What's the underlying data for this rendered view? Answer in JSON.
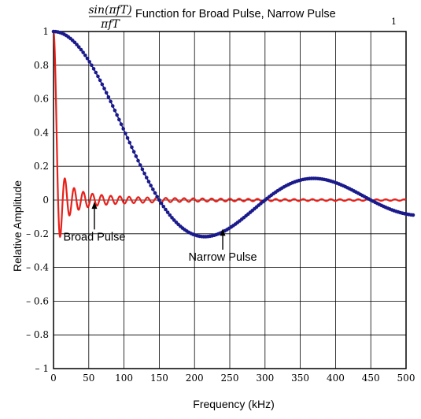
{
  "chart_data": {
    "type": "line",
    "title": {
      "numerator": "sin(πfT)",
      "denominator": "πfT",
      "text": "Function for Broad Pulse, Narrow Pulse"
    },
    "page_number": "1",
    "xlabel": "Frequency (kHz)",
    "ylabel": "Relative Amplitude",
    "xlim": [
      0,
      500
    ],
    "ylim": [
      -1,
      1
    ],
    "x_ticks": [
      0,
      50,
      100,
      150,
      200,
      250,
      300,
      350,
      400,
      450,
      500
    ],
    "x_tick_labels": [
      "0",
      "50",
      "100",
      "150",
      "200",
      "250",
      "300",
      "350",
      "400",
      "450",
      "500"
    ],
    "y_ticks": [
      1,
      0.8,
      0.6,
      0.4,
      0.2,
      0,
      -0.2,
      -0.4,
      -0.6,
      -0.8,
      -1
    ],
    "y_tick_labels": [
      "1",
      "0.8",
      "0.6",
      "0.4",
      "0.2",
      "0",
      "– 0.2",
      "– 0.4",
      "– 0.6",
      "– 0.8",
      "– 1"
    ],
    "grid": true,
    "series": [
      {
        "name": "Narrow Pulse",
        "function": "sinc",
        "first_zero_khz": 150,
        "x_start": 0,
        "x_end": 512,
        "x_step": 3,
        "color": "#1a1a8c",
        "marker": "dot"
      },
      {
        "name": "Broad Pulse",
        "function": "sinc",
        "first_zero_khz": 6.5,
        "x_start": 0,
        "x_end": 500,
        "x_step": 0.25,
        "color": "#e8201a",
        "marker": "none"
      }
    ],
    "annotations": [
      {
        "text": "Broad Pulse",
        "arrow_to": [
          58,
          -0.01
        ],
        "text_at": [
          58,
          -0.24
        ]
      },
      {
        "text": "Narrow Pulse",
        "arrow_to": [
          240,
          -0.17
        ],
        "text_at": [
          240,
          -0.36
        ]
      }
    ]
  }
}
